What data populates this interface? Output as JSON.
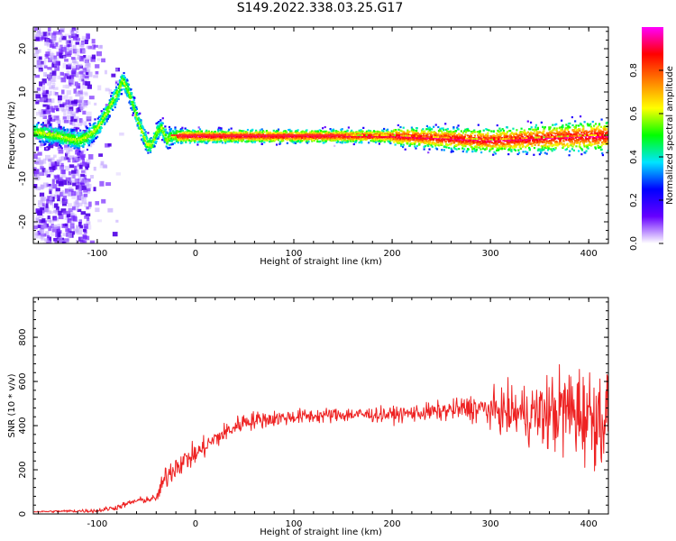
{
  "title": "S149.2022.338.03.25.G17",
  "chart_data": [
    {
      "type": "heatmap",
      "title": "S149.2022.338.03.25.G17",
      "xlabel": "Height of straight line (km)",
      "ylabel": "Frequency (Hz)",
      "xlim": [
        -165,
        420
      ],
      "ylim": [
        -25,
        25
      ],
      "x_ticks": [
        -100,
        0,
        100,
        200,
        300,
        400
      ],
      "y_ticks": [
        -20,
        -10,
        0,
        10,
        20
      ],
      "grid": false,
      "colorbar": {
        "label": "Normalized spectral amplitude",
        "range": [
          0,
          1
        ],
        "ticks": [
          "0.0",
          "0.2",
          "0.4",
          "0.6",
          "0.8"
        ],
        "colormap": [
          "#ffffff",
          "#6600ff",
          "#0000ff",
          "#00e5ff",
          "#00ff00",
          "#ffff00",
          "#ff8000",
          "#ff0000",
          "#ff00ff"
        ]
      },
      "ridge": {
        "x": [
          -165,
          -140,
          -120,
          -110,
          -100,
          -90,
          -80,
          -75,
          -70,
          -65,
          -60,
          -55,
          -50,
          -45,
          -40,
          -35,
          -30,
          -25,
          -20,
          0,
          50,
          100,
          150,
          200,
          250,
          300,
          350,
          400,
          420
        ],
        "frequency": [
          1,
          0,
          -1,
          0,
          2,
          6,
          10,
          13,
          11,
          8,
          4,
          1,
          -2,
          -2,
          1,
          2,
          -1,
          0,
          0,
          0,
          0,
          0,
          0,
          0,
          -0.5,
          -1,
          -0.5,
          0,
          0
        ]
      }
    },
    {
      "type": "line",
      "xlabel": "Height of straight line (km)",
      "ylabel": "SNR (10 * v/v)",
      "xlim": [
        -165,
        420
      ],
      "ylim": [
        0,
        980
      ],
      "x_ticks": [
        -100,
        0,
        100,
        200,
        300,
        400
      ],
      "y_ticks": [
        0,
        200,
        400,
        600,
        800
      ],
      "grid": false,
      "color": "#ee2222",
      "trend": {
        "x": [
          -165,
          -100,
          -80,
          -60,
          -40,
          -30,
          -20,
          0,
          20,
          50,
          100,
          150,
          200,
          250,
          280,
          300,
          320,
          350,
          380,
          400,
          420
        ],
        "y": [
          10,
          15,
          30,
          60,
          70,
          170,
          220,
          270,
          340,
          420,
          440,
          450,
          450,
          465,
          480,
          470,
          460,
          450,
          470,
          450,
          430
        ]
      },
      "noise_amplitude": {
        "x": [
          -165,
          -40,
          -30,
          0,
          100,
          200,
          260,
          300,
          350,
          380,
          420
        ],
        "y": [
          5,
          30,
          110,
          90,
          60,
          60,
          80,
          140,
          280,
          400,
          380
        ]
      }
    }
  ]
}
